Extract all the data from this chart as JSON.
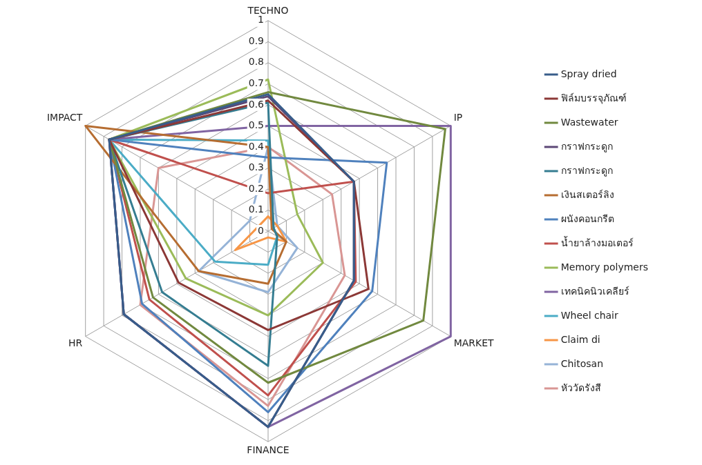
{
  "chart_data": {
    "type": "radar",
    "categories": [
      "TECHNO",
      "IP",
      "MARKET",
      "FINANCE",
      "HR",
      "IMPACT"
    ],
    "ylim": [
      0,
      1
    ],
    "yticks": [
      0,
      0.1,
      0.2,
      0.3,
      0.4,
      0.5,
      0.6,
      0.7,
      0.8,
      0.9,
      1
    ],
    "grid": true,
    "legend": "right",
    "marker": "none",
    "line_style": "solid",
    "series": [
      {
        "name": "Spray dried",
        "color": "#385d8a",
        "values": [
          0.65,
          0.47,
          0.47,
          0.93,
          0.79,
          0.87
        ]
      },
      {
        "name": "ฟิล์มบรรจุภัณฑ์",
        "color": "#8c3836",
        "values": [
          0.62,
          0.47,
          0.55,
          0.47,
          0.49,
          0.87
        ]
      },
      {
        "name": "Wastewater",
        "color": "#71893f",
        "values": [
          0.66,
          0.97,
          0.85,
          0.72,
          0.63,
          0.87
        ]
      },
      {
        "name": "กราฟกระดูก",
        "color": "#5c4776",
        "values": [
          0.64,
          0.47,
          0.47,
          0.93,
          0.79,
          0.87
        ]
      },
      {
        "name": "กราฟกระดูก",
        "color": "#357d91",
        "values": [
          0.61,
          0.03,
          0.05,
          0.64,
          0.58,
          0.87
        ]
      },
      {
        "name": "เงินสเตอร์ลิง",
        "color": "#b66d31",
        "values": [
          0.4,
          0.02,
          0.1,
          0.25,
          0.38,
          1
        ]
      },
      {
        "name": "ผนังคอนกรีต",
        "color": "#4f81bd",
        "values": [
          0.35,
          0.65,
          0.57,
          0.86,
          0.69,
          0.87
        ]
      },
      {
        "name": "น้ำยาล้างมอเตอร์",
        "color": "#c0504d",
        "values": [
          0.18,
          0.47,
          0.48,
          0.78,
          0.65,
          0.87
        ]
      },
      {
        "name": "Memory polymers",
        "color": "#9bbb59",
        "values": [
          0.72,
          0.16,
          0.3,
          0.4,
          0.45,
          0.87
        ]
      },
      {
        "name": "เทคนิคนิวเคลียร์",
        "color": "#8064a2",
        "values": [
          0.5,
          1,
          1,
          0.93,
          0.79,
          0.87
        ]
      },
      {
        "name": "Wheel chair",
        "color": "#4bacc6",
        "values": [
          0.43,
          0.03,
          0.05,
          0.16,
          0.29,
          0.87
        ]
      },
      {
        "name": "Claim di",
        "color": "#f79646",
        "values": [
          0.07,
          0.05,
          0.1,
          0.03,
          0.18,
          0.05
        ]
      },
      {
        "name": "Chitosan",
        "color": "#95b3d7",
        "values": [
          0.4,
          0.05,
          0.16,
          0.29,
          0.38,
          0.1
        ]
      },
      {
        "name": "หัววัดรังสี",
        "color": "#d99694",
        "values": [
          0.4,
          0.35,
          0.42,
          0.83,
          0.7,
          0.6
        ]
      }
    ]
  }
}
